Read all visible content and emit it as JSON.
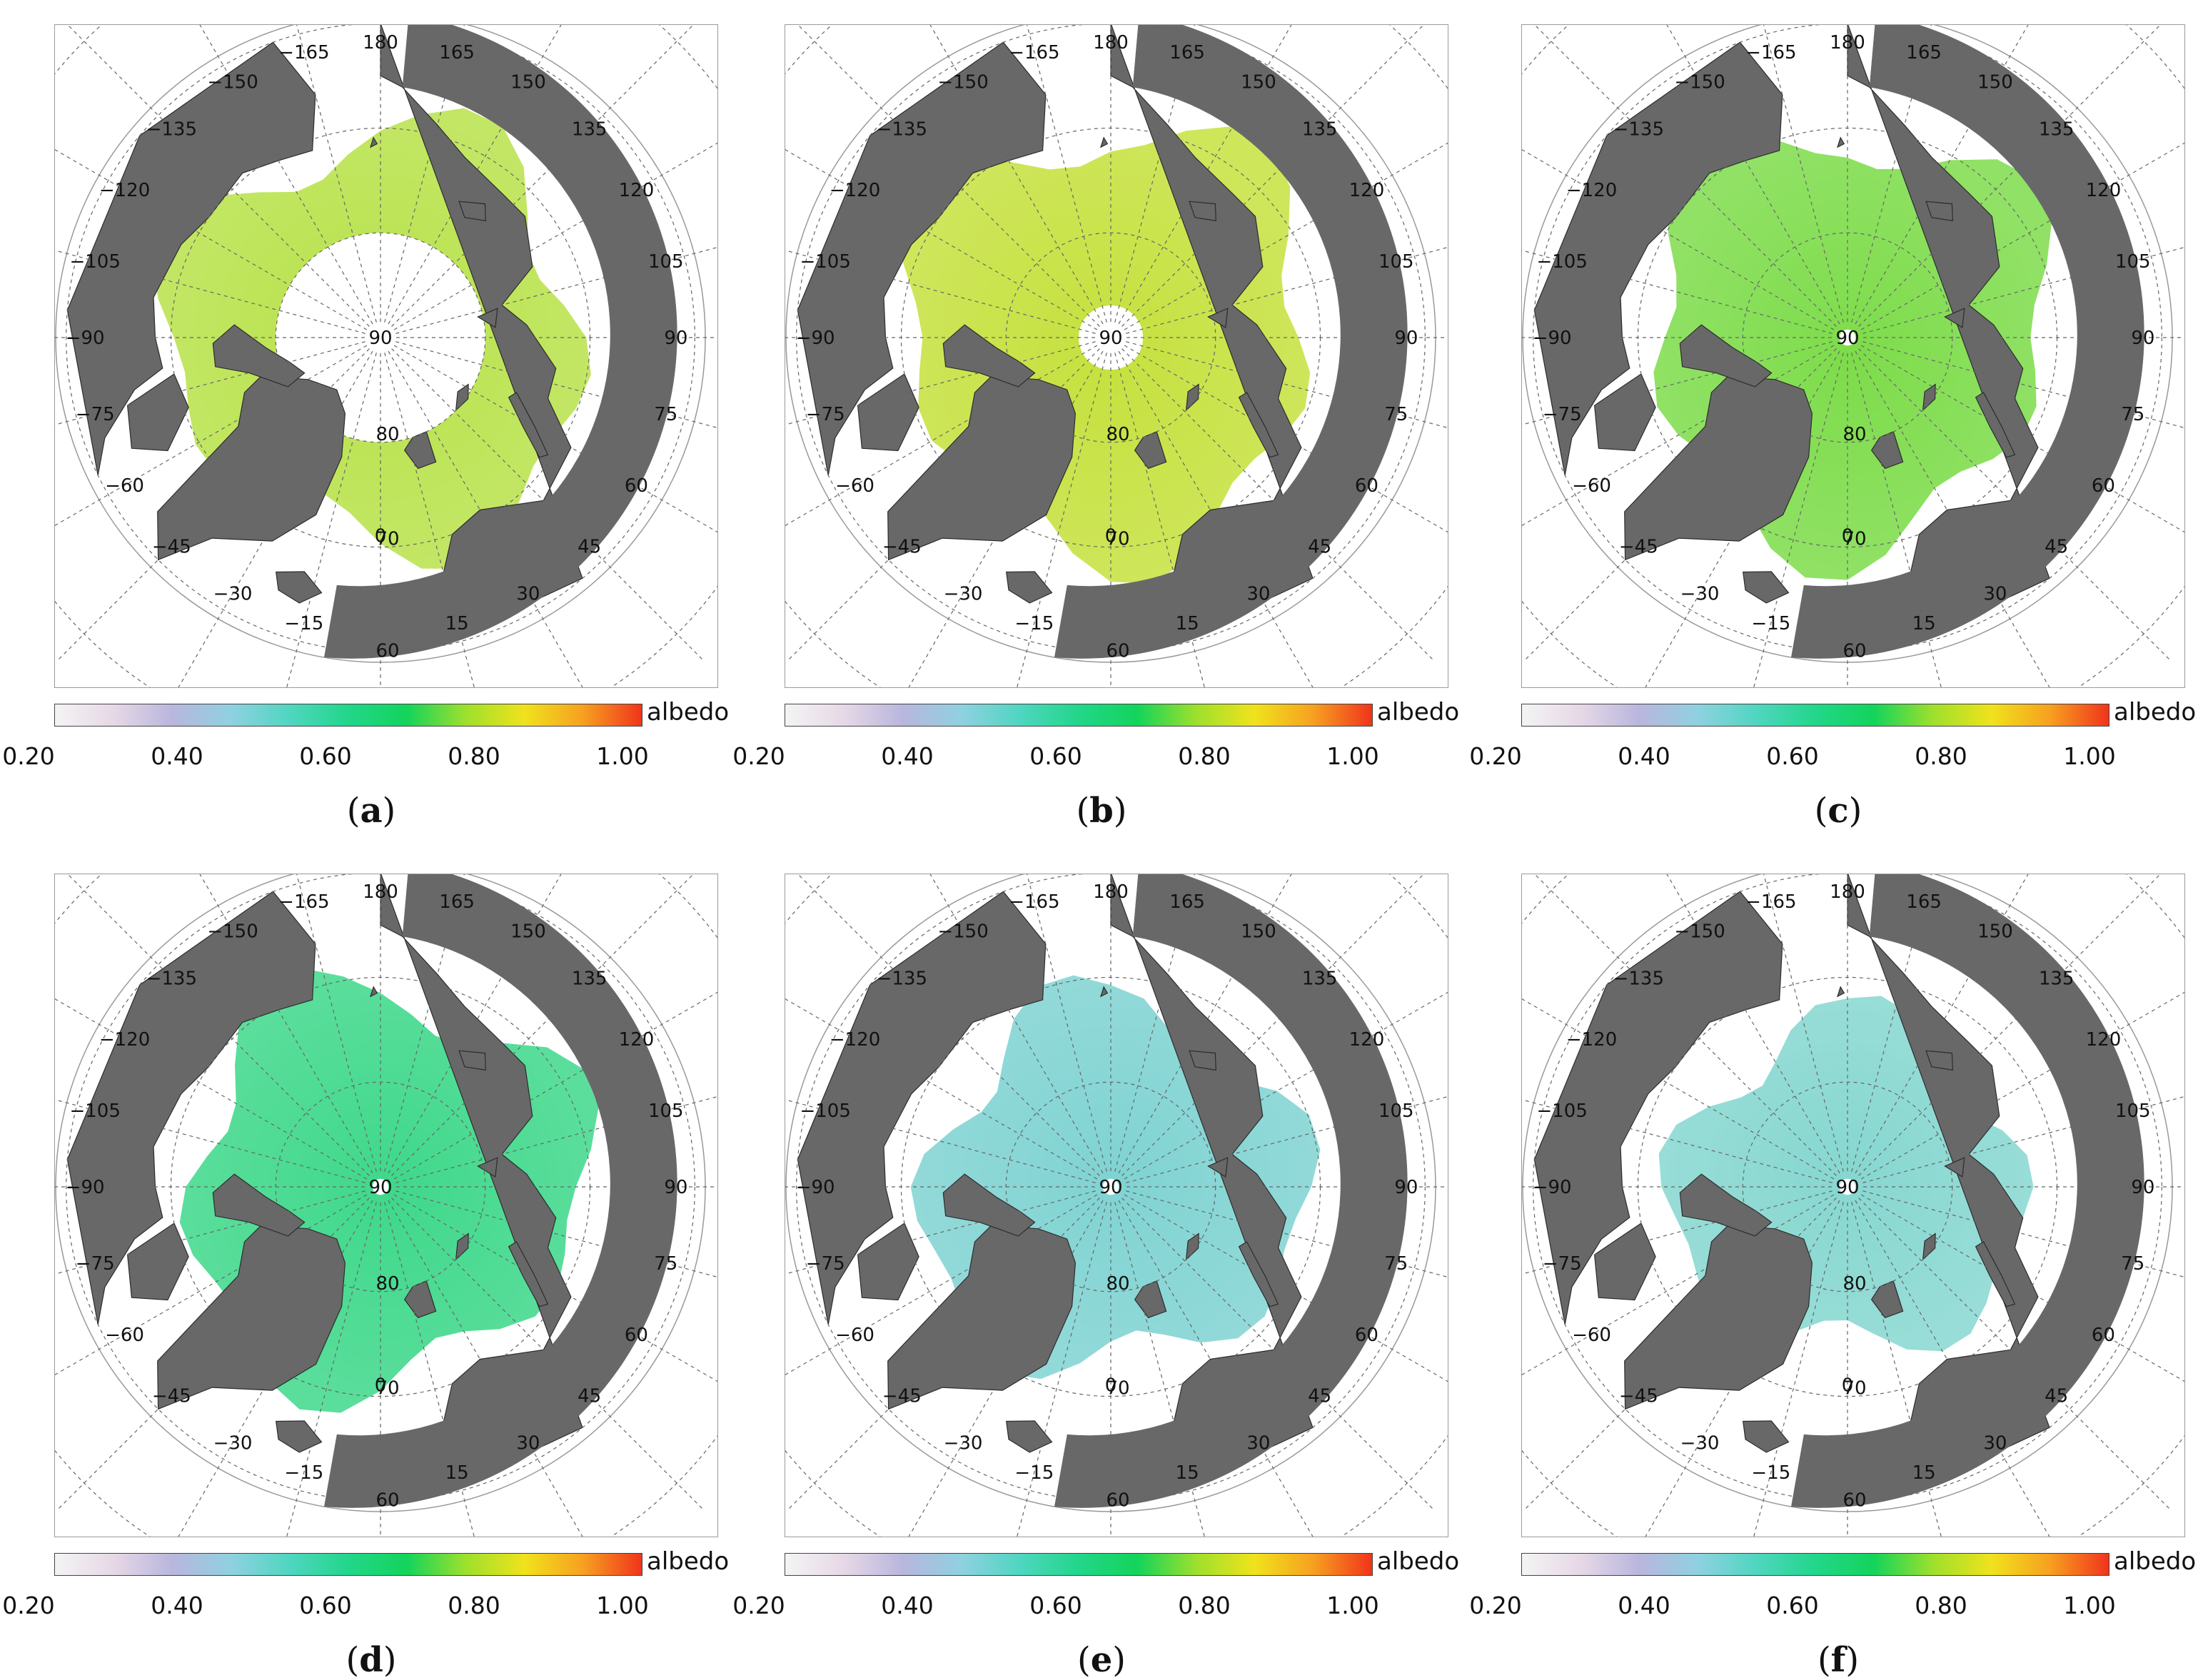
{
  "colorbar": {
    "label": "albedo",
    "ticks": [
      "0.20",
      "0.40",
      "0.60",
      "0.80",
      "1.00"
    ],
    "min": 0.2,
    "max": 1.0,
    "stops": [
      "#f4f4f4",
      "#e6d8e6",
      "#b9b6dd",
      "#8fd1e0",
      "#4fd6c0",
      "#22d68a",
      "#13d45b",
      "#9ee02c",
      "#f0e21c",
      "#f7a020",
      "#f0341c"
    ]
  },
  "grid_labels": {
    "meridians": [
      "180",
      "165",
      "150",
      "135",
      "120",
      "105",
      "90",
      "75",
      "60",
      "45",
      "30",
      "15",
      "0",
      "−15",
      "−30",
      "−45",
      "−60",
      "−75",
      "−90",
      "−105",
      "−120",
      "−135",
      "−150",
      "−165"
    ],
    "parallels": [
      "90",
      "80",
      "70",
      "60"
    ]
  },
  "colors": {
    "land": "#686868",
    "coast": "#2c2c2c",
    "grid": "#666666"
  },
  "panels": [
    {
      "letter": "a",
      "ice_color": "#b8e24a",
      "hole_radius": 0.52,
      "extent": 1.0
    },
    {
      "letter": "b",
      "ice_color": "#c5e13d",
      "hole_radius": 0.16,
      "extent": 1.0
    },
    {
      "letter": "c",
      "ice_color": "#7ddc4a",
      "hole_radius": 0.04,
      "extent": 0.98
    },
    {
      "letter": "d",
      "ice_color": "#3ed88a",
      "hole_radius": 0.04,
      "extent": 0.96
    },
    {
      "letter": "e",
      "ice_color": "#7fd3d2",
      "hole_radius": 0.04,
      "extent": 0.9
    },
    {
      "letter": "f",
      "ice_color": "#86d7d0",
      "hole_radius": 0.04,
      "extent": 0.82
    }
  ]
}
